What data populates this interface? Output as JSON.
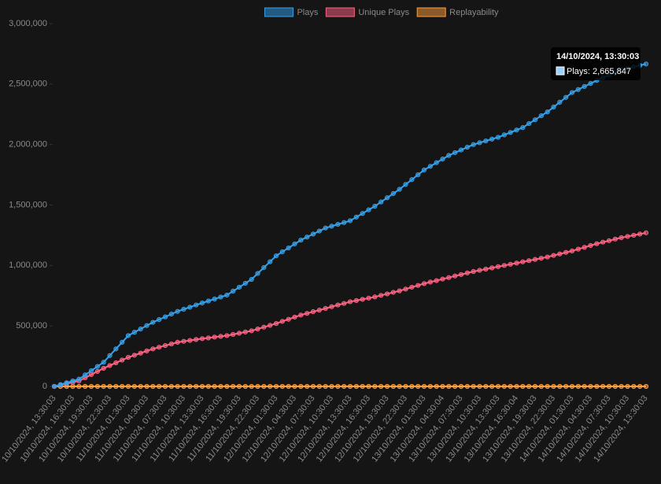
{
  "chart_data": {
    "type": "line",
    "legend": "top",
    "grid": false,
    "categories": [
      "10/10/2024, 13:30:03",
      null,
      null,
      "10/10/2024, 16:30:03",
      null,
      null,
      "10/10/2024, 19:30:03",
      null,
      null,
      "10/10/2024, 22:30:03",
      null,
      null,
      "11/10/2024, 01:30:03",
      null,
      null,
      "11/10/2024, 04:30:03",
      null,
      null,
      "11/10/2024, 07:30:03",
      null,
      null,
      "11/10/2024, 10:30:03",
      null,
      null,
      "11/10/2024, 13:30:03",
      null,
      null,
      "11/10/2024, 16:30:03",
      null,
      null,
      "11/10/2024, 19:30:03",
      null,
      null,
      "11/10/2024, 22:30:03",
      null,
      null,
      "12/10/2024, 01:30:03",
      null,
      null,
      "12/10/2024, 04:30:03",
      null,
      null,
      "12/10/2024, 07:30:03",
      null,
      null,
      "12/10/2024, 10:30:03",
      null,
      null,
      "12/10/2024, 13:30:03",
      null,
      null,
      "12/10/2024, 16:30:03",
      null,
      null,
      "12/10/2024, 19:30:03",
      null,
      null,
      "12/10/2024, 22:30:03",
      null,
      null,
      "13/10/2024, 01:30:03",
      null,
      null,
      "13/10/2024, 04:30:04",
      null,
      null,
      "13/10/2024, 07:30:03",
      null,
      null,
      "13/10/2024, 10:30:03",
      null,
      null,
      "13/10/2024, 13:30:03",
      null,
      null,
      "13/10/2024, 16:30:04",
      null,
      null,
      "13/10/2024, 19:30:03",
      null,
      null,
      "13/10/2024, 22:30:03",
      null,
      null,
      "14/10/2024, 01:30:03",
      null,
      null,
      "14/10/2024, 04:30:03",
      null,
      null,
      "14/10/2024, 07:30:03",
      null,
      null,
      "14/10/2024, 10:30:03",
      null,
      null,
      "14/10/2024, 13:30:03"
    ],
    "series": [
      {
        "name": "Plays",
        "color": "#36a2eb",
        "values": [
          0,
          15000,
          30000,
          45000,
          60000,
          95000,
          130000,
          165000,
          200000,
          255000,
          310000,
          365000,
          420000,
          448000,
          475000,
          503000,
          530000,
          553000,
          575000,
          598000,
          620000,
          638000,
          655000,
          673000,
          690000,
          706000,
          723000,
          739000,
          755000,
          788000,
          820000,
          853000,
          885000,
          934000,
          983000,
          1031000,
          1080000,
          1113000,
          1145000,
          1178000,
          1210000,
          1235000,
          1260000,
          1285000,
          1310000,
          1325000,
          1340000,
          1355000,
          1370000,
          1400000,
          1430000,
          1460000,
          1490000,
          1525000,
          1560000,
          1595000,
          1630000,
          1670000,
          1710000,
          1750000,
          1790000,
          1820000,
          1850000,
          1880000,
          1910000,
          1933000,
          1955000,
          1978000,
          2000000,
          2015000,
          2030000,
          2045000,
          2060000,
          2080000,
          2100000,
          2120000,
          2140000,
          2173000,
          2205000,
          2238000,
          2270000,
          2310000,
          2350000,
          2390000,
          2430000,
          2455000,
          2480000,
          2505000,
          2530000,
          2553000,
          2575000,
          2598000,
          2620000,
          2632000,
          2643000,
          2655000,
          2665847
        ]
      },
      {
        "name": "Unique Plays",
        "color": "#ff6384",
        "values": [
          0,
          11000,
          23000,
          34000,
          45000,
          71000,
          98000,
          124000,
          150000,
          173000,
          195000,
          218000,
          240000,
          258000,
          275000,
          293000,
          310000,
          324000,
          338000,
          351000,
          365000,
          373000,
          380000,
          388000,
          395000,
          401000,
          408000,
          414000,
          420000,
          430000,
          440000,
          450000,
          460000,
          475000,
          490000,
          505000,
          520000,
          538000,
          555000,
          573000,
          590000,
          604000,
          618000,
          631000,
          645000,
          659000,
          673000,
          686000,
          700000,
          710000,
          720000,
          730000,
          740000,
          753000,
          765000,
          778000,
          790000,
          805000,
          820000,
          835000,
          850000,
          863000,
          875000,
          888000,
          900000,
          913000,
          925000,
          938000,
          950000,
          960000,
          970000,
          980000,
          990000,
          1000000,
          1010000,
          1020000,
          1030000,
          1040000,
          1050000,
          1060000,
          1070000,
          1083000,
          1095000,
          1108000,
          1120000,
          1135000,
          1150000,
          1165000,
          1180000,
          1193000,
          1205000,
          1218000,
          1230000,
          1240000,
          1250000,
          1260000,
          1270000
        ]
      },
      {
        "name": "Replayability",
        "color": "#ff9f40",
        "values": [
          0,
          1.3,
          1.3,
          1.3,
          1.3,
          1.3,
          1.3,
          1.3,
          1.3,
          1.6,
          1.6,
          1.6,
          1.6,
          1.6,
          1.6,
          1.6,
          1.6,
          1.7,
          1.7,
          1.7,
          1.7,
          1.7,
          1.7,
          1.7,
          1.7,
          1.8,
          1.8,
          1.8,
          1.8,
          1.8,
          1.8,
          1.8,
          1.8,
          1.9,
          1.9,
          1.9,
          1.9,
          1.9,
          1.9,
          1.9,
          1.9,
          1.9,
          1.9,
          1.9,
          1.9,
          1.9,
          1.9,
          1.9,
          1.9,
          2.1,
          2.1,
          2.1,
          2.1,
          2.1,
          2.1,
          2.1,
          2.1,
          2.1,
          2.1,
          2.1,
          2.1,
          2.1,
          2.1,
          2.1,
          2.1,
          2.1,
          2.1,
          2.1,
          2.1,
          2.1,
          2.1,
          2.1,
          2.1,
          2.1,
          2.1,
          2.1,
          2.1,
          2.1,
          2.1,
          2.1,
          2.1,
          2.1,
          2.1,
          2.1,
          2.1,
          2.1,
          2.1,
          2.1,
          2.1,
          2.1,
          2.1,
          2.1,
          2.1,
          2.1,
          2.1,
          2.1,
          2.1
        ]
      }
    ],
    "ylim": [
      0,
      3000000
    ],
    "yticks": [
      0,
      {
        "value": 500000,
        "label": "500,000"
      },
      {
        "value": 1000000,
        "label": "1,000,000"
      },
      {
        "value": 1500000,
        "label": "1,500,000"
      },
      {
        "value": 2000000,
        "label": "2,000,000"
      },
      {
        "value": 2500000,
        "label": "2,500,000"
      },
      {
        "value": 3000000,
        "label": "3,000,000"
      }
    ],
    "tooltip": {
      "label": "Plays: 2,665,847"
    }
  }
}
